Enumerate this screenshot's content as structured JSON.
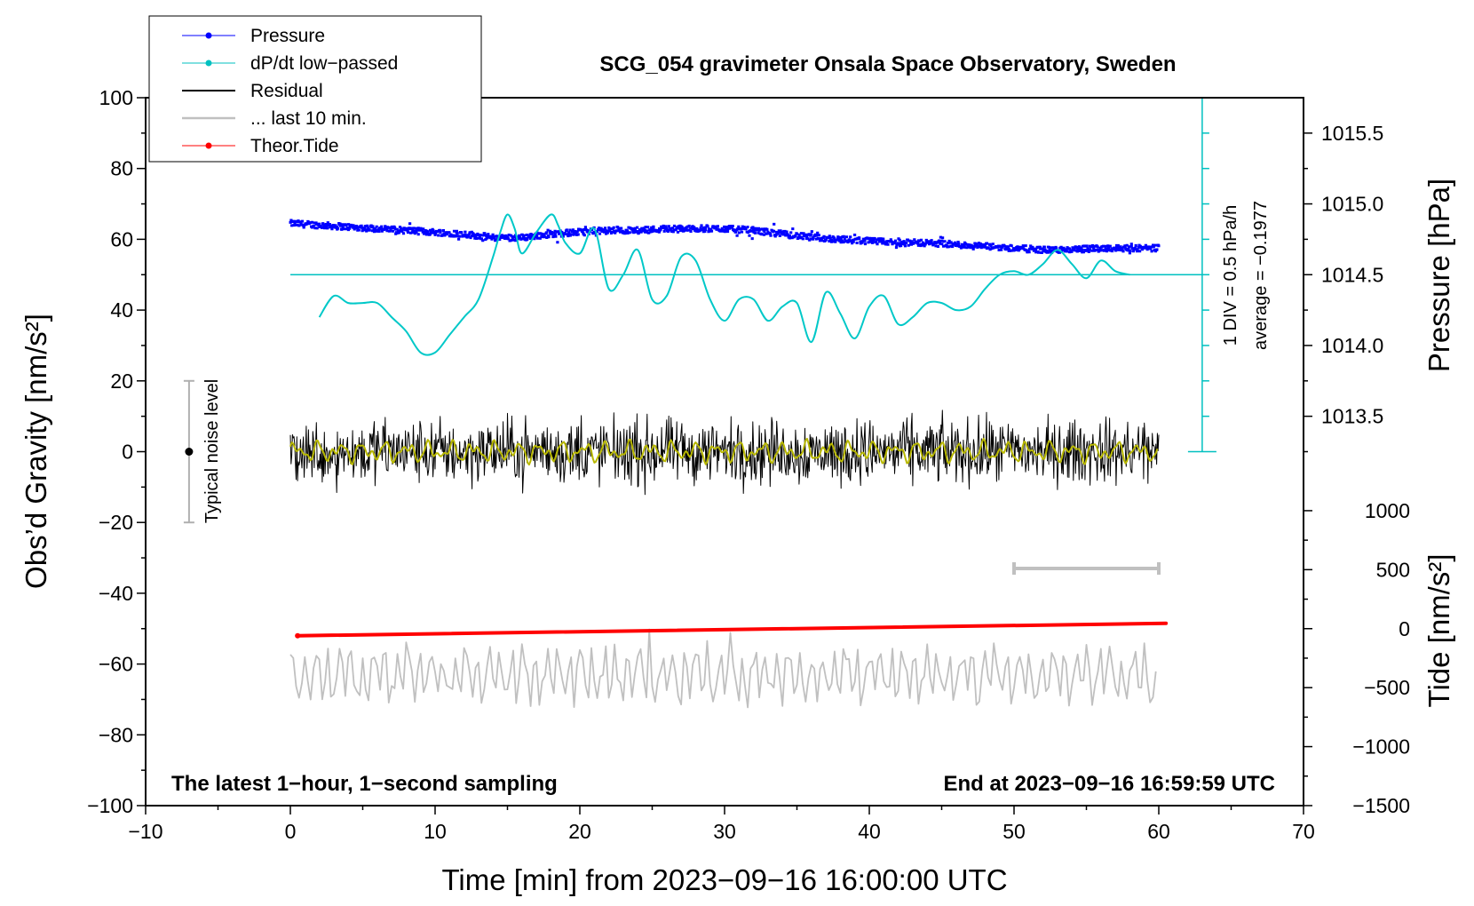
{
  "chart_data": {
    "type": "line",
    "title": "SCG_054 gravimeter Onsala Space Observatory, Sweden",
    "xlabel": "Time [min] from 2023−09−16 16:00:00 UTC",
    "ylabel_left": "Obs’d Gravity [nm/s²]",
    "ylabel_pressure": "Pressure [hPa]",
    "ylabel_tide": "Tide [nm/s²]",
    "xlim": [
      -10,
      70
    ],
    "ylim": [
      -100,
      100
    ],
    "x_ticks": [
      "−10",
      "0",
      "10",
      "20",
      "30",
      "40",
      "50",
      "60",
      "70"
    ],
    "x_tick_values": [
      -10,
      0,
      10,
      20,
      30,
      40,
      50,
      60,
      70
    ],
    "y_ticks": [
      "100",
      "80",
      "60",
      "40",
      "20",
      "0",
      "−20",
      "−40",
      "−60",
      "−80",
      "−100"
    ],
    "y_tick_values": [
      100,
      80,
      60,
      40,
      20,
      0,
      -20,
      -40,
      -60,
      -80,
      -100
    ],
    "pressure_ticks": [
      "1015.5",
      "1015.0",
      "1014.5",
      "1014.0",
      "1013.5"
    ],
    "pressure_tick_values": [
      1015.5,
      1015.0,
      1014.5,
      1014.0,
      1013.5
    ],
    "pressure_to_gravity": {
      "ref_hpa": 1014.5,
      "ref_y": 50,
      "scale": 40
    },
    "tide_ticks": [
      "1000",
      "500",
      "0",
      "−500",
      "−1000",
      "−1500"
    ],
    "tide_tick_values": [
      1000,
      500,
      0,
      -500,
      -1000,
      -1500
    ],
    "tide_to_gravity": {
      "ref_tide": 0,
      "ref_y": -50,
      "scale": 0.03333
    },
    "legend": [
      {
        "label": "Pressure",
        "color": "#0000ff",
        "marker": true
      },
      {
        "label": "dP/dt low−passed",
        "color": "#00c0c0",
        "marker": true
      },
      {
        "label": "Residual",
        "color": "#000000",
        "marker": false
      },
      {
        "label": "... last 10 min.",
        "color": "#c0c0c0",
        "marker": false
      },
      {
        "label": "Theor.Tide",
        "color": "#ff0000",
        "marker": true
      }
    ],
    "notes": {
      "noise": "Typical noise level",
      "div": "1 DIV = 0.5 hPa/h",
      "average": "average = −0.1977",
      "bottom_left": "The latest 1−hour, 1−second sampling",
      "bottom_right": "End at 2023−09−16 16:59:59 UTC"
    },
    "noise_bar": {
      "x": -7,
      "y": 0,
      "ymin": -20,
      "ymax": 20
    },
    "dpdt_scale": {
      "x": 63,
      "ymin": 0,
      "ymax": 100,
      "divisions": 10,
      "baseline_y": 50,
      "baseline_x": [
        0,
        63.5
      ]
    },
    "ten_min_bar": {
      "x_start": 50,
      "x_end": 60,
      "y": -33
    },
    "series": [
      {
        "name": "Pressure",
        "color": "#0000ff",
        "x": [
          0,
          2,
          4,
          6,
          8,
          10,
          12,
          14,
          16,
          18,
          20,
          22,
          24,
          26,
          28,
          30,
          32,
          34,
          36,
          38,
          40,
          42,
          44,
          46,
          48,
          50,
          52,
          54,
          56,
          58,
          60
        ],
        "y": [
          64.5,
          64,
          63.5,
          63,
          62.5,
          62,
          61.5,
          60.5,
          60.5,
          61.5,
          62,
          62.5,
          62.5,
          63,
          63,
          63,
          62.5,
          61.5,
          60.5,
          60,
          59.5,
          59,
          59,
          58.5,
          58,
          57.5,
          57,
          57,
          57.5,
          57.5,
          57.5
        ]
      },
      {
        "name": "dP/dt low−passed",
        "color": "#00c0c0",
        "x": [
          2,
          3,
          4,
          5,
          6,
          7,
          8,
          9,
          10,
          11,
          12,
          13,
          14,
          14.5,
          15,
          15.5,
          16,
          17,
          18,
          18.5,
          19,
          20,
          21,
          22,
          23,
          24,
          25,
          26,
          27,
          28,
          29,
          30,
          31,
          32,
          33,
          34,
          35,
          36,
          37,
          38,
          39,
          40,
          41,
          42,
          43,
          44,
          45,
          46,
          47,
          48,
          49,
          50,
          51,
          52,
          53,
          54,
          55,
          56,
          57,
          58
        ],
        "y": [
          38,
          44,
          42,
          42,
          42,
          38,
          34,
          28,
          28,
          33,
          38,
          43,
          55,
          62,
          67,
          63,
          56,
          62,
          67,
          64,
          59,
          56,
          63,
          46,
          50,
          57,
          43,
          44,
          55,
          54,
          43,
          37,
          43,
          43,
          37,
          41,
          42,
          31,
          45,
          39,
          32,
          41,
          44,
          36,
          38,
          42,
          42,
          40,
          41,
          46,
          50,
          51,
          50,
          53,
          57,
          53,
          49,
          54,
          51,
          50
        ]
      },
      {
        "name": "Residual",
        "color": "#000000",
        "x_range": [
          0,
          60
        ],
        "y_center": 0,
        "amplitude": 12
      },
      {
        "name": "Residual smoothed",
        "color": "#b8b800",
        "x_range": [
          0,
          60
        ],
        "y_center": 0,
        "amplitude": 3
      },
      {
        "name": "... last 10 min.",
        "color": "#c0c0c0",
        "x_range": [
          0,
          60
        ],
        "y_center": -63,
        "amplitude": 10
      },
      {
        "name": "Theor.Tide",
        "color": "#ff0000",
        "x": [
          0.5,
          60.5
        ],
        "y": [
          -52,
          -48.5
        ]
      }
    ]
  }
}
